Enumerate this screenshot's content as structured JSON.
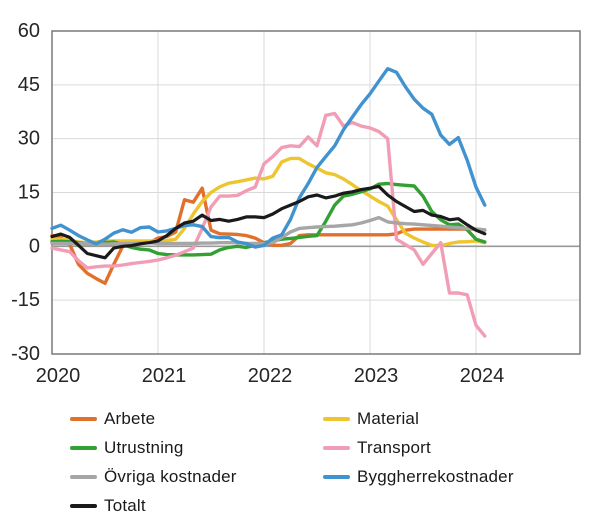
{
  "chart_data": {
    "type": "line",
    "title": "",
    "x_unit": "month",
    "x_start": "2020-01",
    "x_end": "2024-02",
    "xticks": [
      "2020",
      "2021",
      "2022",
      "2023",
      "2024"
    ],
    "ylim": [
      -30,
      60
    ],
    "yticks": [
      60,
      45,
      30,
      15,
      0,
      -15,
      -30
    ],
    "grid": true,
    "zero_line": true,
    "legend_position": "bottom",
    "series": [
      {
        "name": "Arbete",
        "color": "#E1702C",
        "values": [
          3.0,
          2.5,
          0.5,
          -5,
          -7.5,
          -9,
          -10.3,
          -5,
          0,
          0.5,
          1,
          1,
          2.3,
          2.7,
          4,
          13,
          12.3,
          16.2,
          4.5,
          3.5,
          3.4,
          3.3,
          3,
          2.3,
          1,
          0.3,
          0.3,
          0.8,
          3,
          3.2,
          3.2,
          3.2,
          3.2,
          3.2,
          3.2,
          3.2,
          3.2,
          3.2,
          3.2,
          3.5,
          4.5,
          4.8,
          4.8,
          4.8,
          4.8,
          4.8,
          4.8,
          4.8,
          4.8,
          4.5
        ]
      },
      {
        "name": "Material",
        "color": "#EEC52E",
        "values": [
          2,
          2,
          1.8,
          1.2,
          1,
          1.2,
          1.5,
          1.5,
          1.5,
          1.5,
          1.5,
          1.5,
          1.5,
          1.6,
          2,
          5,
          9,
          12.5,
          15,
          16.6,
          17.6,
          18,
          18.5,
          19,
          18.8,
          19.5,
          23.5,
          24.5,
          24.5,
          23,
          21.8,
          20.5,
          20,
          18.8,
          17.2,
          15.5,
          14,
          12.5,
          11.2,
          7.4,
          3.7,
          2.3,
          1.2,
          0.3,
          0.2,
          0.8,
          1.2,
          1.3,
          1.5,
          1
        ]
      },
      {
        "name": "Utrustning",
        "color": "#33A033",
        "values": [
          1.3,
          1.4,
          1.3,
          1,
          0.7,
          0.6,
          1,
          1.2,
          0.5,
          -0.3,
          -0.8,
          -1,
          -2,
          -2.3,
          -2.4,
          -2.4,
          -2.4,
          -2.3,
          -2.2,
          -1,
          -0.3,
          0,
          -0.3,
          0.3,
          1,
          1.5,
          2,
          2.2,
          2.5,
          2.8,
          3,
          7,
          11.5,
          14,
          14.5,
          15.2,
          16,
          17.3,
          17.5,
          17.2,
          17,
          16.8,
          14,
          9.7,
          7.4,
          6,
          6.2,
          4.6,
          2,
          1.2
        ]
      },
      {
        "name": "Transport",
        "color": "#F19DB5",
        "values": [
          -0.5,
          -1,
          -1.5,
          -4,
          -6,
          -5.7,
          -5.5,
          -5.5,
          -5.2,
          -4.8,
          -4.5,
          -4.2,
          -3.8,
          -3.2,
          -2.5,
          -1.5,
          -0.5,
          5,
          11,
          14,
          14,
          14.2,
          15.5,
          16.5,
          23,
          25,
          27.5,
          28,
          27.8,
          30.5,
          28,
          36.5,
          37,
          33.5,
          34.5,
          33.5,
          33,
          32,
          30,
          2,
          0.5,
          -1,
          -5,
          -2,
          1,
          -13,
          -13,
          -13.5,
          -22,
          -25
        ]
      },
      {
        "name": "Övriga kostnader",
        "color": "#A6A6A6",
        "values": [
          0.8,
          0.8,
          0.8,
          0.8,
          0.7,
          0.6,
          0.6,
          0.7,
          0.8,
          0.8,
          0.9,
          1,
          0.8,
          0.8,
          0.8,
          0.8,
          0.8,
          0.9,
          0.9,
          1,
          1,
          1,
          0.8,
          0.8,
          0.8,
          1,
          2.5,
          4,
          5,
          5.2,
          5.4,
          5.5,
          5.6,
          5.8,
          6,
          6.5,
          7.2,
          8,
          6.8,
          6.5,
          6.3,
          6.2,
          6,
          5.8,
          5.6,
          5.4,
          5.2,
          5,
          4.8,
          4.6
        ]
      },
      {
        "name": "Byggherrekostnader",
        "color": "#4193D0",
        "values": [
          5,
          5.9,
          4.5,
          3,
          1.8,
          0.7,
          2,
          3.7,
          4.6,
          3.9,
          5.2,
          5.4,
          4,
          4.3,
          5,
          5.8,
          6,
          5.5,
          2.7,
          2.4,
          2.5,
          1.2,
          0.8,
          -0.2,
          0.3,
          2.3,
          3.2,
          7.5,
          13.5,
          17.5,
          22,
          25,
          28,
          32.5,
          36,
          39.5,
          42.5,
          46,
          49.5,
          48.5,
          44.5,
          41,
          38.5,
          36.8,
          31,
          28.4,
          30.3,
          24,
          16.5,
          11.5
        ]
      },
      {
        "name": "Totalt",
        "color": "#1A1A1A",
        "values": [
          2.7,
          3.4,
          2.5,
          0.3,
          -2,
          -2.6,
          -3.2,
          -0.5,
          0,
          0.2,
          0.7,
          1,
          1.5,
          3,
          5,
          6.5,
          7,
          8.7,
          7.2,
          7.5,
          7,
          7.5,
          8.2,
          8.2,
          8,
          9,
          10.5,
          11.5,
          12.5,
          13.8,
          14.3,
          13.5,
          14,
          14.8,
          15.2,
          15.8,
          16.2,
          16.7,
          14.3,
          12.5,
          11.1,
          9.7,
          10,
          8.7,
          8.3,
          7.4,
          7.7,
          6,
          4.5,
          3.5
        ]
      }
    ],
    "colors": {
      "grid": "#D9D9D9",
      "zero_line": "#999999",
      "plot_border": "#808080",
      "tick_text": "#262626"
    }
  }
}
